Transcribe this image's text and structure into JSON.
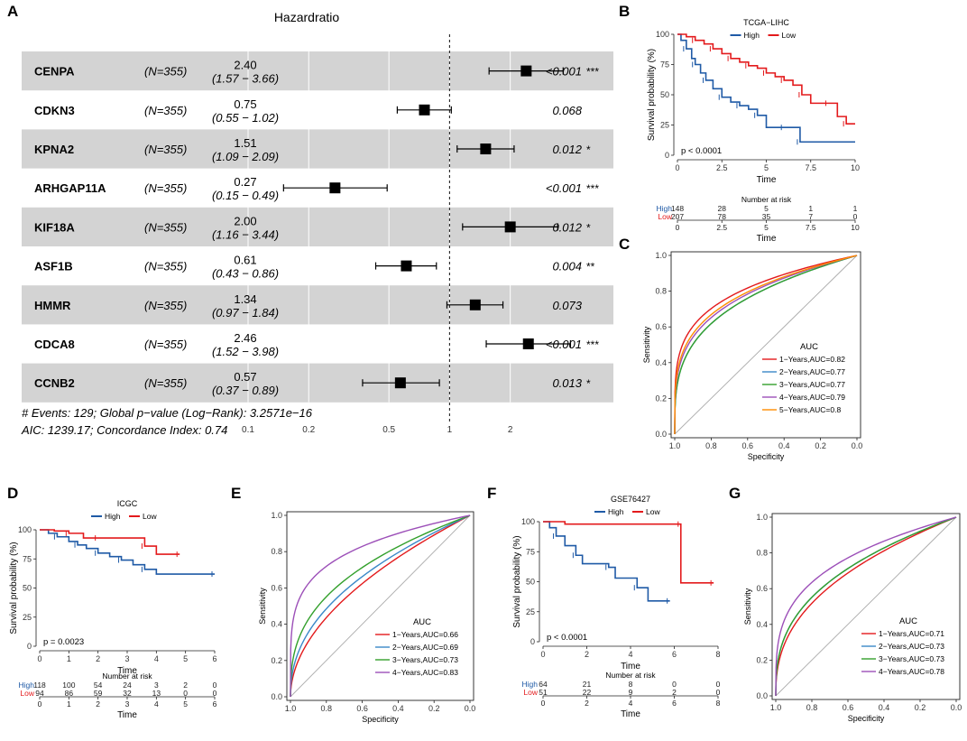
{
  "panel_labels": [
    "A",
    "B",
    "C",
    "D",
    "E",
    "F",
    "G"
  ],
  "chart_data": [
    {
      "panel": "A",
      "type": "forest",
      "title": "Hazardratio",
      "n_label": "(N=355)",
      "xscale": "log",
      "xlim": [
        0.1,
        3.0
      ],
      "xticks": [
        "0.1",
        "0.2",
        "0.5",
        "1",
        "2"
      ],
      "rows": [
        {
          "gene": "CENPA",
          "hr": 2.4,
          "lo": 1.57,
          "hi": 3.66,
          "hr_text": "2.40",
          "ci_text": "(1.57 − 3.66)",
          "p_text": "<0.001",
          "stars": "***"
        },
        {
          "gene": "CDKN3",
          "hr": 0.75,
          "lo": 0.55,
          "hi": 1.02,
          "hr_text": "0.75",
          "ci_text": "(0.55 − 1.02)",
          "p_text": "0.068",
          "stars": ""
        },
        {
          "gene": "KPNA2",
          "hr": 1.51,
          "lo": 1.09,
          "hi": 2.09,
          "hr_text": "1.51",
          "ci_text": "(1.09 − 2.09)",
          "p_text": "0.012",
          "stars": "*"
        },
        {
          "gene": "ARHGAP11A",
          "hr": 0.27,
          "lo": 0.15,
          "hi": 0.49,
          "hr_text": "0.27",
          "ci_text": "(0.15 − 0.49)",
          "p_text": "<0.001",
          "stars": "***"
        },
        {
          "gene": "KIF18A",
          "hr": 2.0,
          "lo": 1.16,
          "hi": 3.44,
          "hr_text": "2.00",
          "ci_text": "(1.16 − 3.44)",
          "p_text": "0.012",
          "stars": "*"
        },
        {
          "gene": "ASF1B",
          "hr": 0.61,
          "lo": 0.43,
          "hi": 0.86,
          "hr_text": "0.61",
          "ci_text": "(0.43 − 0.86)",
          "p_text": "0.004",
          "stars": "**"
        },
        {
          "gene": "HMMR",
          "hr": 1.34,
          "lo": 0.97,
          "hi": 1.84,
          "hr_text": "1.34",
          "ci_text": "(0.97 − 1.84)",
          "p_text": "0.073",
          "stars": ""
        },
        {
          "gene": "CDCA8",
          "hr": 2.46,
          "lo": 1.52,
          "hi": 3.98,
          "hr_text": "2.46",
          "ci_text": "(1.52 − 3.98)",
          "p_text": "<0.001",
          "stars": "***"
        },
        {
          "gene": "CCNB2",
          "hr": 0.57,
          "lo": 0.37,
          "hi": 0.89,
          "hr_text": "0.57",
          "ci_text": "(0.37 − 0.89)",
          "p_text": "0.013",
          "stars": "*"
        }
      ],
      "footnote1": "# Events: 129; Global p−value (Log−Rank): 3.2571e−16",
      "footnote2": "AIC: 1239.17; Concordance Index: 0.74"
    },
    {
      "panel": "B",
      "type": "km",
      "title": "TCGA−LIHC",
      "ylabel": "Survival probability (%)",
      "xlabel": "Time",
      "xlim": [
        0,
        10
      ],
      "ylim": [
        0,
        100
      ],
      "xticks": [
        "0",
        "2.5",
        "5",
        "7.5",
        "10"
      ],
      "yticks": [
        "0",
        "25",
        "50",
        "75",
        "100"
      ],
      "pvalue": "p < 0.0001",
      "series": [
        {
          "name": "High",
          "color": "#1f5aa6",
          "points": [
            [
              0,
              100
            ],
            [
              0.2,
              95
            ],
            [
              0.5,
              88
            ],
            [
              0.8,
              80
            ],
            [
              1.0,
              75
            ],
            [
              1.3,
              68
            ],
            [
              1.6,
              62
            ],
            [
              2.0,
              55
            ],
            [
              2.5,
              48
            ],
            [
              3.0,
              44
            ],
            [
              3.5,
              41
            ],
            [
              4.0,
              38
            ],
            [
              4.5,
              33
            ],
            [
              5.0,
              23
            ],
            [
              6.0,
              23
            ],
            [
              6.8,
              23
            ],
            [
              6.9,
              11
            ],
            [
              10,
              11
            ]
          ]
        },
        {
          "name": "Low",
          "color": "#e31a1c",
          "points": [
            [
              0,
              100
            ],
            [
              0.5,
              98
            ],
            [
              1.0,
              95
            ],
            [
              1.5,
              92
            ],
            [
              2.0,
              88
            ],
            [
              2.5,
              84
            ],
            [
              3.0,
              80
            ],
            [
              3.5,
              77
            ],
            [
              4.0,
              74
            ],
            [
              4.5,
              72
            ],
            [
              5.0,
              68
            ],
            [
              5.5,
              65
            ],
            [
              6.0,
              62
            ],
            [
              6.5,
              58
            ],
            [
              7.0,
              50
            ],
            [
              7.5,
              43
            ],
            [
              8.5,
              43
            ],
            [
              9.0,
              32
            ],
            [
              9.5,
              26
            ],
            [
              10,
              26
            ]
          ]
        }
      ],
      "risk_table": {
        "title": "Number at risk",
        "xlabel": "Time",
        "ticks": [
          "0",
          "2.5",
          "5",
          "7.5",
          "10"
        ],
        "rows": [
          {
            "name": "High",
            "values": [
              "148",
              "28",
              "5",
              "1",
              "1"
            ]
          },
          {
            "name": "Low",
            "values": [
              "207",
              "78",
              "35",
              "7",
              "0"
            ]
          }
        ]
      }
    },
    {
      "panel": "C",
      "type": "roc",
      "xlabel": "Specificity",
      "ylabel": "Sensitivity",
      "xticks": [
        "1.0",
        "0.8",
        "0.6",
        "0.4",
        "0.2",
        "0.0"
      ],
      "yticks": [
        "0.0",
        "0.2",
        "0.4",
        "0.6",
        "0.8",
        "1.0"
      ],
      "legend_title": "AUC",
      "series": [
        {
          "name": "1−Years,AUC=0.82",
          "auc": 0.82,
          "color": "#e31a1c"
        },
        {
          "name": "2−Years,AUC=0.77",
          "auc": 0.77,
          "color": "#3a88c8"
        },
        {
          "name": "3−Years,AUC=0.77",
          "auc": 0.77,
          "color": "#33a02c"
        },
        {
          "name": "4−Years,AUC=0.79",
          "auc": 0.79,
          "color": "#9c4fb8"
        },
        {
          "name": "5−Years,AUC=0.8",
          "auc": 0.8,
          "color": "#ff8c00"
        }
      ]
    },
    {
      "panel": "D",
      "type": "km",
      "title": "ICGC",
      "ylabel": "Survival probability (%)",
      "xlabel": "Time",
      "xlim": [
        0,
        6
      ],
      "ylim": [
        0,
        100
      ],
      "xticks": [
        "0",
        "1",
        "2",
        "3",
        "4",
        "5",
        "6"
      ],
      "yticks": [
        "0",
        "25",
        "50",
        "75",
        "100"
      ],
      "pvalue": "p = 0.0023",
      "series": [
        {
          "name": "High",
          "color": "#1f5aa6",
          "points": [
            [
              0,
              100
            ],
            [
              0.3,
              97
            ],
            [
              0.6,
              94
            ],
            [
              1.0,
              90
            ],
            [
              1.3,
              87
            ],
            [
              1.6,
              84
            ],
            [
              2.0,
              80
            ],
            [
              2.4,
              77
            ],
            [
              2.8,
              74
            ],
            [
              3.2,
              70
            ],
            [
              3.6,
              66
            ],
            [
              4.0,
              62
            ],
            [
              6,
              62
            ]
          ]
        },
        {
          "name": "Low",
          "color": "#e31a1c",
          "points": [
            [
              0,
              100
            ],
            [
              0.5,
              99
            ],
            [
              1.0,
              97
            ],
            [
              1.5,
              93
            ],
            [
              2.0,
              93
            ],
            [
              3.0,
              93
            ],
            [
              3.6,
              86
            ],
            [
              4.0,
              79
            ],
            [
              4.8,
              79
            ]
          ]
        }
      ],
      "risk_table": {
        "title": "Number at risk",
        "xlabel": "Time",
        "ticks": [
          "0",
          "1",
          "2",
          "3",
          "4",
          "5",
          "6"
        ],
        "rows": [
          {
            "name": "High",
            "values": [
              "118",
              "100",
              "54",
              "24",
              "3",
              "2",
              "0"
            ]
          },
          {
            "name": "Low",
            "values": [
              "94",
              "86",
              "59",
              "32",
              "13",
              "0",
              "0"
            ]
          }
        ]
      }
    },
    {
      "panel": "E",
      "type": "roc",
      "xlabel": "Specificity",
      "ylabel": "Sensitivity",
      "xticks": [
        "1.0",
        "0.8",
        "0.6",
        "0.4",
        "0.2",
        "0.0"
      ],
      "yticks": [
        "0.0",
        "0.2",
        "0.4",
        "0.6",
        "0.8",
        "1.0"
      ],
      "legend_title": "AUC",
      "series": [
        {
          "name": "1−Years,AUC=0.66",
          "auc": 0.66,
          "color": "#e31a1c"
        },
        {
          "name": "2−Years,AUC=0.69",
          "auc": 0.69,
          "color": "#3a88c8"
        },
        {
          "name": "3−Years,AUC=0.73",
          "auc": 0.73,
          "color": "#33a02c"
        },
        {
          "name": "4−Years,AUC=0.83",
          "auc": 0.83,
          "color": "#9c4fb8"
        }
      ]
    },
    {
      "panel": "F",
      "type": "km",
      "title": "GSE76427",
      "ylabel": "Survival probability (%)",
      "xlabel": "Time",
      "xlim": [
        0,
        8
      ],
      "ylim": [
        0,
        100
      ],
      "xticks": [
        "0",
        "2",
        "4",
        "6",
        "8"
      ],
      "yticks": [
        "0",
        "25",
        "50",
        "75",
        "100"
      ],
      "pvalue": "p < 0.0001",
      "series": [
        {
          "name": "High",
          "color": "#1f5aa6",
          "points": [
            [
              0,
              100
            ],
            [
              0.3,
              95
            ],
            [
              0.6,
              88
            ],
            [
              1.0,
              80
            ],
            [
              1.5,
              72
            ],
            [
              1.8,
              65
            ],
            [
              3.0,
              62
            ],
            [
              3.3,
              53
            ],
            [
              4.3,
              45
            ],
            [
              4.8,
              34
            ],
            [
              5.8,
              34
            ]
          ]
        },
        {
          "name": "Low",
          "color": "#e31a1c",
          "points": [
            [
              0,
              100
            ],
            [
              1,
              98
            ],
            [
              6.3,
              98
            ],
            [
              6.3,
              49
            ],
            [
              7.8,
              49
            ]
          ]
        }
      ],
      "risk_table": {
        "title": "Number at risk",
        "xlabel": "Time",
        "ticks": [
          "0",
          "2",
          "4",
          "6",
          "8"
        ],
        "rows": [
          {
            "name": "High",
            "values": [
              "64",
              "21",
              "8",
              "0",
              "0"
            ]
          },
          {
            "name": "Low",
            "values": [
              "51",
              "22",
              "9",
              "2",
              "0"
            ]
          }
        ]
      }
    },
    {
      "panel": "G",
      "type": "roc",
      "xlabel": "Specificity",
      "ylabel": "Sensitivity",
      "xticks": [
        "1.0",
        "0.8",
        "0.6",
        "0.4",
        "0.2",
        "0.0"
      ],
      "yticks": [
        "0.0",
        "0.2",
        "0.4",
        "0.6",
        "0.8",
        "1.0"
      ],
      "legend_title": "AUC",
      "series": [
        {
          "name": "1−Years,AUC=0.71",
          "auc": 0.71,
          "color": "#e31a1c"
        },
        {
          "name": "2−Years,AUC=0.73",
          "auc": 0.73,
          "color": "#3a88c8"
        },
        {
          "name": "3−Years,AUC=0.73",
          "auc": 0.73,
          "color": "#33a02c"
        },
        {
          "name": "4−Years,AUC=0.78",
          "auc": 0.78,
          "color": "#9c4fb8"
        }
      ]
    }
  ]
}
